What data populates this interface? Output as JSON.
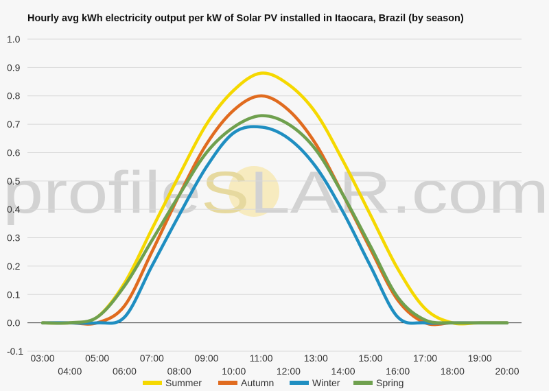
{
  "chart_data": {
    "type": "line",
    "title": "Hourly avg kWh electricity output per kW of Solar PV installed in Itaocara, Brazil (by season)",
    "xlabel": "",
    "ylabel": "",
    "ylim": [
      -0.1,
      1.0
    ],
    "yticks": [
      "-0.1",
      "0.0",
      "0.1",
      "0.2",
      "0.3",
      "0.4",
      "0.5",
      "0.6",
      "0.7",
      "0.8",
      "0.9",
      "1.0"
    ],
    "x": [
      "03:00",
      "04:00",
      "05:00",
      "06:00",
      "07:00",
      "08:00",
      "09:00",
      "10:00",
      "11:00",
      "12:00",
      "13:00",
      "14:00",
      "15:00",
      "16:00",
      "17:00",
      "18:00",
      "19:00",
      "20:00"
    ],
    "grid": true,
    "legend_position": "bottom",
    "watermark": {
      "part1": "profile",
      "part2": "S",
      "part3": "LAR.com"
    },
    "series": [
      {
        "name": "Summer",
        "color": "#f5d800",
        "values": [
          0.0,
          0.0,
          0.02,
          0.14,
          0.33,
          0.52,
          0.7,
          0.82,
          0.88,
          0.84,
          0.74,
          0.57,
          0.38,
          0.19,
          0.05,
          0.0,
          0.0,
          0.0
        ]
      },
      {
        "name": "Autumn",
        "color": "#e06b1f",
        "values": [
          0.0,
          0.0,
          0.0,
          0.06,
          0.25,
          0.45,
          0.63,
          0.75,
          0.8,
          0.75,
          0.63,
          0.45,
          0.26,
          0.08,
          0.0,
          0.0,
          0.0,
          0.0
        ]
      },
      {
        "name": "Winter",
        "color": "#1f8ec1",
        "values": [
          0.0,
          0.0,
          0.0,
          0.02,
          0.2,
          0.38,
          0.55,
          0.67,
          0.69,
          0.65,
          0.55,
          0.39,
          0.2,
          0.02,
          0.0,
          0.0,
          0.0,
          0.0
        ]
      },
      {
        "name": "Spring",
        "color": "#6fa04e",
        "values": [
          0.0,
          0.0,
          0.02,
          0.13,
          0.29,
          0.45,
          0.6,
          0.69,
          0.73,
          0.7,
          0.61,
          0.45,
          0.27,
          0.09,
          0.01,
          0.0,
          0.0,
          0.0
        ]
      }
    ]
  }
}
